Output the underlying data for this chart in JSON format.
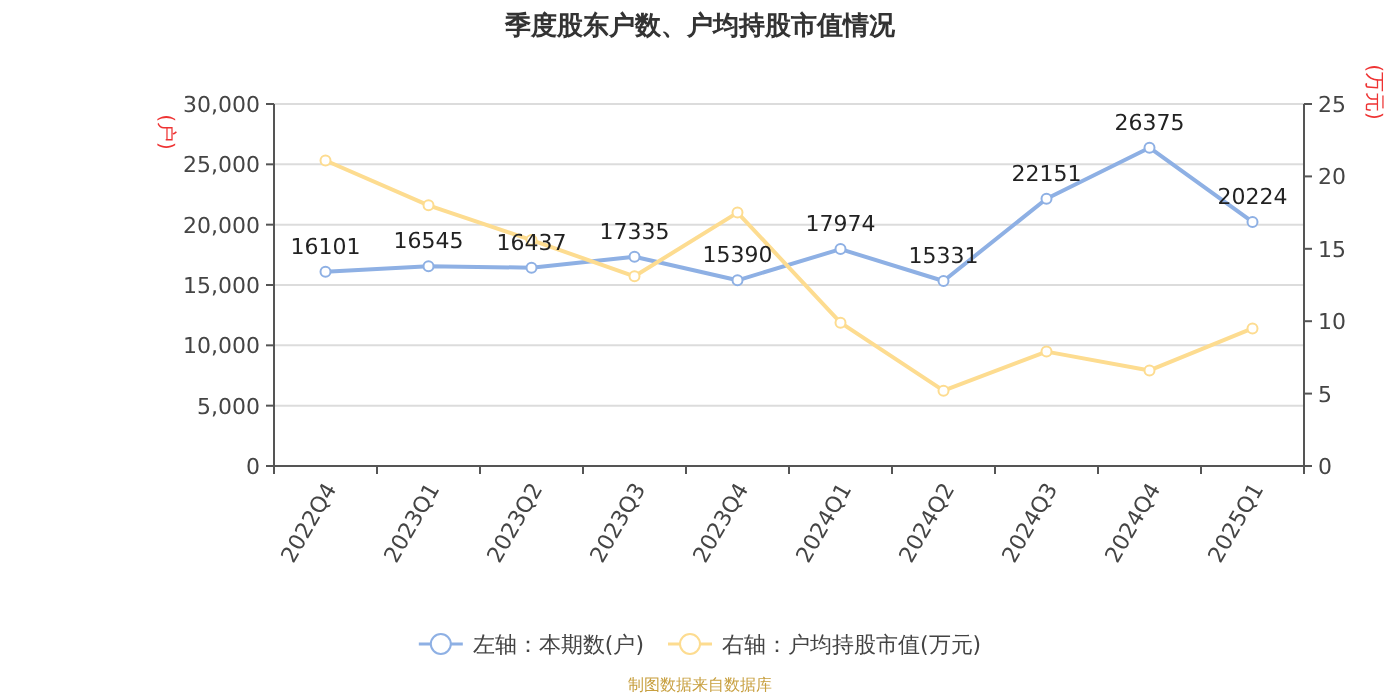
{
  "chart_data": {
    "type": "line",
    "title": "季度股东户数、户均持股市值情况",
    "categories": [
      "2022Q4",
      "2023Q1",
      "2023Q2",
      "2023Q3",
      "2023Q4",
      "2024Q1",
      "2024Q2",
      "2024Q3",
      "2024Q4",
      "2025Q1"
    ],
    "series": [
      {
        "name": "左轴：本期数(户)",
        "color": "#8eb0e4",
        "values": [
          16101,
          16545,
          16437,
          17335,
          15390,
          17974,
          15331,
          22151,
          26375,
          20224
        ],
        "value_labels": [
          "16101",
          "16545",
          "16437",
          "17335",
          "15390",
          "17974",
          "15331",
          "22151",
          "26375",
          "20224"
        ]
      },
      {
        "name": "右轴：户均持股市值(万元)",
        "color": "#fddc90",
        "axis": "y2",
        "values": [
          21.1,
          18.0,
          15.6,
          13.1,
          17.5,
          9.9,
          5.2,
          7.9,
          6.6,
          9.5
        ]
      }
    ],
    "ylabel": "(户)",
    "y2label": "(万元)",
    "ylim": [
      0,
      30000
    ],
    "yticks": [
      {
        "value": 0,
        "label": "0"
      },
      {
        "value": 5000,
        "label": "5,000"
      },
      {
        "value": 10000,
        "label": "10,000"
      },
      {
        "value": 15000,
        "label": "15,000"
      },
      {
        "value": 20000,
        "label": "20,000"
      },
      {
        "value": 25000,
        "label": "25,000"
      },
      {
        "value": 30000,
        "label": "30,000"
      }
    ],
    "y2lim": [
      0,
      25
    ],
    "y2ticks": [
      0,
      5,
      10,
      15,
      20,
      25
    ],
    "grid": "y",
    "legend": "bottom",
    "marker": "circle",
    "line_style": "solid",
    "annotations": [
      "制图数据来自数据库"
    ]
  }
}
